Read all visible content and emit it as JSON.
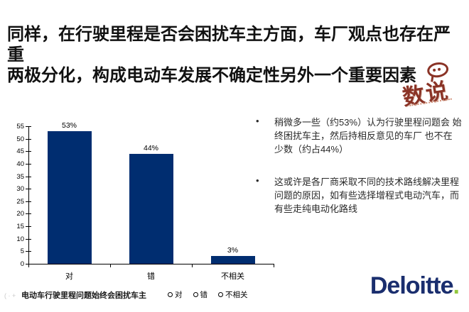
{
  "title": {
    "line1": "同样，在行驶里程是否会困扰车主方面，车厂观点也存在严重",
    "line2": "两极分化，构成电动车发展不确定性另外一个重要因素"
  },
  "stamp": {
    "text": "数说",
    "color": "#8a3326"
  },
  "chart_data": {
    "type": "bar",
    "categories": [
      "对",
      "错",
      "不相关"
    ],
    "values": [
      53,
      44,
      3
    ],
    "value_labels": [
      "53%",
      "44%",
      "3%"
    ],
    "series_label": "电动车行驶里程问题始终会困扰车主",
    "legend_items": [
      "对",
      "错",
      "不相关"
    ],
    "legend_position": "bottom",
    "ylim": [
      0,
      55
    ],
    "ytick_step": 5,
    "grid": "off",
    "bar_color": "#002d70",
    "title": "",
    "xlabel": "",
    "ylabel": ""
  },
  "legend_artifact": "( · +",
  "bullets": [
    "稍微多一些（约53%）认为行驶里程问题会 始终困扰车主，然后持相反意见的车厂 也不在 少数（约占44%）",
    "这或许是各厂商采取不同的技术路线解决里程问题的原因，如有些选择增程式电动汽车，而有些走纯电动化路线"
  ],
  "brand": {
    "name": "Deloitte",
    "dot": ".",
    "navy": "#1a2e6e",
    "green": "#92c83e"
  }
}
